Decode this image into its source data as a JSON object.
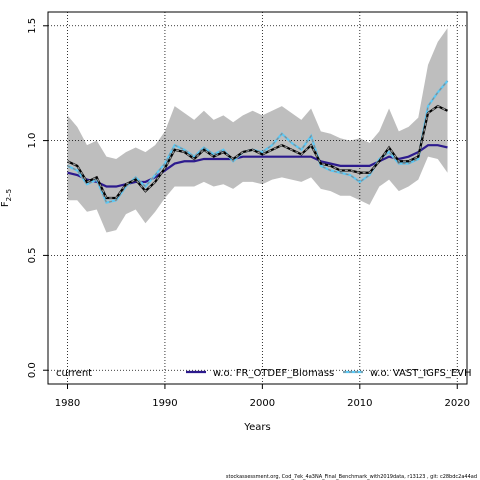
{
  "chart_data": {
    "type": "line",
    "xlabel": "Years",
    "ylabel": "F",
    "ylabel_sub": "2–5",
    "xlim": [
      1978,
      2021
    ],
    "ylim": [
      -0.06,
      1.56
    ],
    "xticks": [
      1980,
      1990,
      2000,
      2010,
      2020
    ],
    "yticks": [
      0.0,
      0.5,
      1.0,
      1.5
    ],
    "ytick_labels": [
      "0.0",
      "0.5",
      "1.0",
      "1.5"
    ],
    "grid": true,
    "legend_position": "bottom",
    "x": [
      1980,
      1981,
      1982,
      1983,
      1984,
      1985,
      1986,
      1987,
      1988,
      1989,
      1990,
      1991,
      1992,
      1993,
      1994,
      1995,
      1996,
      1997,
      1998,
      1999,
      2000,
      2001,
      2002,
      2003,
      2004,
      2005,
      2006,
      2007,
      2008,
      2009,
      2010,
      2011,
      2012,
      2013,
      2014,
      2015,
      2016,
      2017,
      2018,
      2019
    ],
    "series": [
      {
        "name": "current",
        "color": "#000000",
        "style": "dashed-black-grey",
        "values": [
          0.91,
          0.89,
          0.82,
          0.84,
          0.75,
          0.75,
          0.81,
          0.83,
          0.78,
          0.82,
          0.88,
          0.96,
          0.95,
          0.92,
          0.96,
          0.93,
          0.95,
          0.92,
          0.95,
          0.96,
          0.94,
          0.96,
          0.98,
          0.96,
          0.94,
          0.98,
          0.9,
          0.89,
          0.87,
          0.87,
          0.86,
          0.86,
          0.91,
          0.97,
          0.91,
          0.91,
          0.93,
          1.12,
          1.15,
          1.13
        ],
        "band_upper": [
          1.11,
          1.06,
          0.98,
          1.0,
          0.93,
          0.92,
          0.95,
          0.97,
          0.95,
          0.98,
          1.04,
          1.15,
          1.12,
          1.09,
          1.13,
          1.09,
          1.11,
          1.08,
          1.11,
          1.13,
          1.11,
          1.13,
          1.15,
          1.12,
          1.09,
          1.14,
          1.04,
          1.03,
          1.01,
          1.0,
          1.01,
          0.99,
          1.04,
          1.14,
          1.04,
          1.06,
          1.1,
          1.33,
          1.43,
          1.49
        ],
        "band_lower": [
          0.74,
          0.74,
          0.69,
          0.7,
          0.6,
          0.61,
          0.68,
          0.7,
          0.64,
          0.69,
          0.75,
          0.8,
          0.8,
          0.8,
          0.82,
          0.8,
          0.81,
          0.79,
          0.82,
          0.82,
          0.81,
          0.83,
          0.84,
          0.83,
          0.82,
          0.84,
          0.79,
          0.78,
          0.76,
          0.76,
          0.74,
          0.72,
          0.8,
          0.83,
          0.78,
          0.8,
          0.83,
          0.93,
          0.92,
          0.86
        ]
      },
      {
        "name": "w.o. FR_OTDEF_Biomass",
        "color": "#2d1b8e",
        "style": "solid",
        "values": [
          0.86,
          0.85,
          0.83,
          0.82,
          0.8,
          0.8,
          0.81,
          0.82,
          0.82,
          0.84,
          0.87,
          0.9,
          0.91,
          0.91,
          0.92,
          0.92,
          0.92,
          0.92,
          0.93,
          0.93,
          0.93,
          0.93,
          0.93,
          0.93,
          0.93,
          0.93,
          0.91,
          0.9,
          0.89,
          0.89,
          0.89,
          0.89,
          0.91,
          0.93,
          0.92,
          0.93,
          0.95,
          0.98,
          0.98,
          0.97
        ]
      },
      {
        "name": "w.o. VAST_IGFS_EVH",
        "color": "#5bc8f5",
        "style": "dashed-cyan-grey",
        "values": [
          0.89,
          0.87,
          0.81,
          0.83,
          0.73,
          0.74,
          0.8,
          0.84,
          0.8,
          0.85,
          0.9,
          0.98,
          0.96,
          0.93,
          0.97,
          0.94,
          0.96,
          0.91,
          0.95,
          0.96,
          0.95,
          0.98,
          1.03,
          0.99,
          0.96,
          1.02,
          0.89,
          0.87,
          0.86,
          0.85,
          0.82,
          0.85,
          0.92,
          0.95,
          0.9,
          0.9,
          0.92,
          1.15,
          1.21,
          1.26
        ]
      }
    ]
  },
  "footer": "stockassessment.org, Cod_7ek_4a3NA_Final_Benchmark_with2019data, r13123 ,  git: c28bdc2a44ad"
}
